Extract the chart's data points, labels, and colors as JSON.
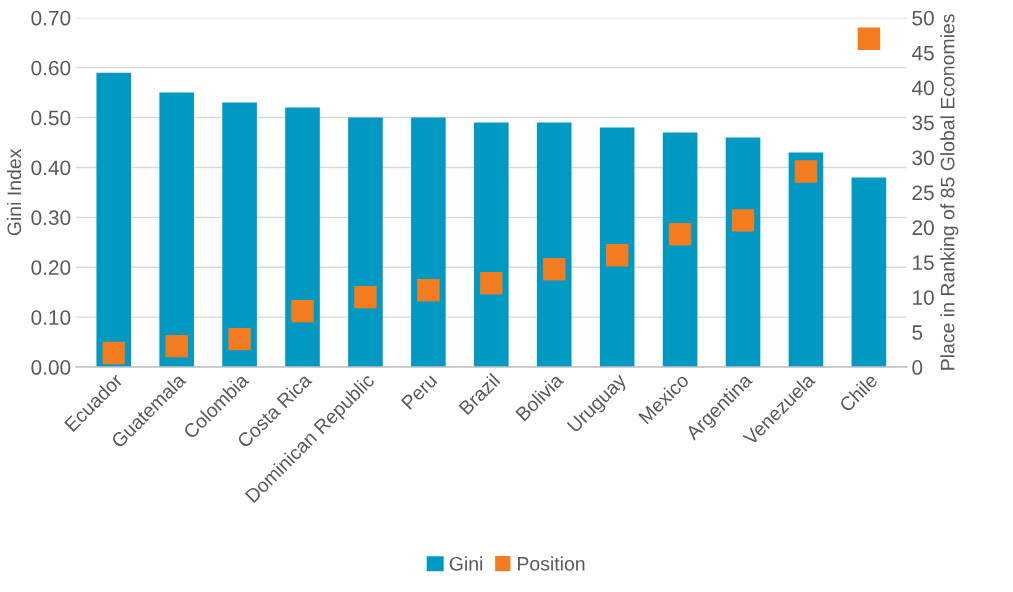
{
  "chart_data": {
    "type": "bar",
    "ylabel": "Gini Index",
    "y2label": "Place in Ranking of 85 Global Economies",
    "categories": [
      "Ecuador",
      "Guatemala",
      "Colombia",
      "Costa Rica",
      "Dominican Republic",
      "Peru",
      "Brazil",
      "Bolivia",
      "Uruguay",
      "Mexico",
      "Argentina",
      "Venezuela",
      "Chile"
    ],
    "series": [
      {
        "name": "Gini",
        "color": "#0099c2",
        "values": [
          0.59,
          0.55,
          0.53,
          0.52,
          0.5,
          0.5,
          0.49,
          0.49,
          0.48,
          0.47,
          0.46,
          0.43,
          0.38
        ]
      },
      {
        "name": "Position",
        "type": "scatter",
        "axis": "y2",
        "color": "#f47c20",
        "marker": "square",
        "values": [
          2,
          3,
          4,
          8,
          10,
          11,
          12,
          14,
          16,
          19,
          21,
          28,
          47
        ]
      }
    ],
    "ylim": [
      0,
      0.7
    ],
    "yticks": [
      {
        "value": 0,
        "label": "0.00"
      },
      {
        "value": 0.1,
        "label": "0.10"
      },
      {
        "value": 0.2,
        "label": "0.20"
      },
      {
        "value": 0.3,
        "label": "0.30"
      },
      {
        "value": 0.4,
        "label": "0.40"
      },
      {
        "value": 0.5,
        "label": "0.50"
      },
      {
        "value": 0.6,
        "label": "0.60"
      },
      {
        "value": 0.7,
        "label": "0.70"
      }
    ],
    "y2lim": [
      0,
      50
    ],
    "y2ticks": [
      0,
      5,
      10,
      15,
      20,
      25,
      30,
      35,
      40,
      45,
      50
    ],
    "grid": "y",
    "legend": "bottom"
  }
}
